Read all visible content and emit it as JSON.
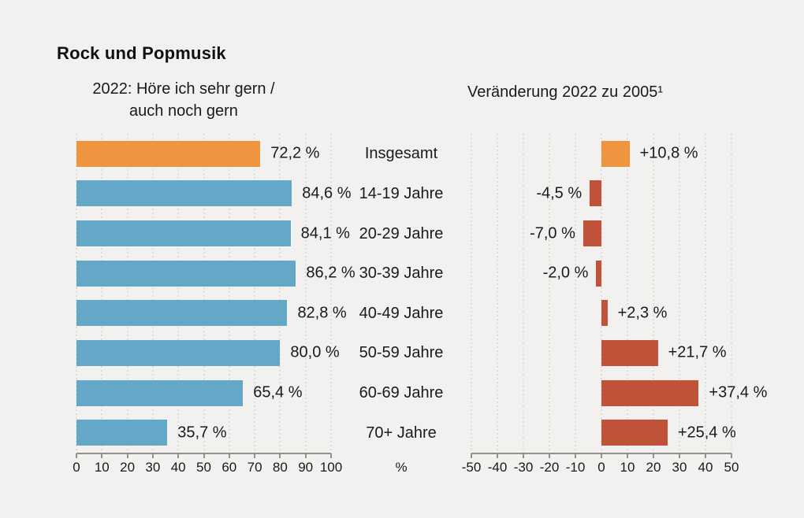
{
  "title": "Rock und Popmusik",
  "unit_label": "%",
  "colors": {
    "background": "#f2f1ef",
    "orange": "#f0953f",
    "blue": "#64a8c7",
    "red": "#c1523a",
    "grid": "#cbcbc7",
    "axis": "#90908d",
    "text": "#1a1a1a"
  },
  "chart_data": [
    {
      "type": "bar",
      "orientation": "horizontal",
      "title_lines": [
        "2022: Höre ich sehr gern /",
        "auch noch gern"
      ],
      "categories": [
        "Insgesamt",
        "14-19 Jahre",
        "20-29 Jahre",
        "30-39 Jahre",
        "40-49 Jahre",
        "50-59 Jahre",
        "60-69 Jahre",
        "70+ Jahre"
      ],
      "values": [
        72.2,
        84.6,
        84.1,
        86.2,
        82.8,
        80.0,
        65.4,
        35.7
      ],
      "value_labels": [
        "72,2 %",
        "84,6 %",
        "84,1 %",
        "86,2 %",
        "82,8 %",
        "80,0 %",
        "65,4 %",
        "35,7 %"
      ],
      "xlim": [
        0,
        100
      ],
      "ticks": [
        "0",
        "10",
        "20",
        "30",
        "40",
        "50",
        "60",
        "70",
        "80",
        "90",
        "100"
      ],
      "xlabel": "%",
      "grid": true,
      "legend": "none",
      "highlight_index": 0
    },
    {
      "type": "bar",
      "orientation": "horizontal",
      "title": "Veränderung 2022 zu 2005¹",
      "categories": [
        "Insgesamt",
        "14-19 Jahre",
        "20-29 Jahre",
        "30-39 Jahre",
        "40-49 Jahre",
        "50-59 Jahre",
        "60-69 Jahre",
        "70+ Jahre"
      ],
      "values": [
        10.8,
        -4.5,
        -7.0,
        -2.0,
        2.3,
        21.7,
        37.4,
        25.4
      ],
      "value_labels": [
        "+10,8 %",
        "-4,5 %",
        "-7,0 %",
        "-2,0 %",
        "+2,3 %",
        "+21,7 %",
        "+37,4 %",
        "+25,4 %"
      ],
      "xlim": [
        -50,
        50
      ],
      "ticks": [
        "-50",
        "-40",
        "-30",
        "-20",
        "-10",
        "0",
        "10",
        "20",
        "30",
        "40",
        "50"
      ],
      "xlabel": "",
      "grid": true,
      "legend": "none",
      "highlight_index": 0
    }
  ]
}
